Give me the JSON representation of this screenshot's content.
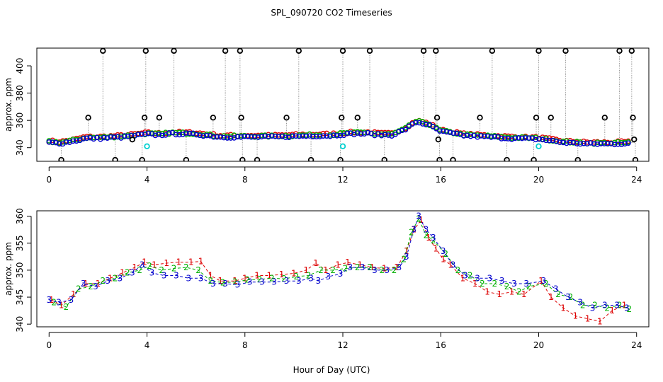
{
  "title": "SPL_090720  CO2 Timeseries",
  "xlabel": "Hour of Day (UTC)",
  "colors": {
    "series1": "#dd0000",
    "series2": "#00b000",
    "series3": "#0000cc",
    "outlier": "#000000",
    "flag": "#00d0d0",
    "stem": "#888888"
  },
  "chart_data": [
    {
      "type": "scatter",
      "name": "top-panel",
      "ylabel": "approx. ppm",
      "xlim": [
        -0.5,
        24.5
      ],
      "ylim": [
        330,
        413
      ],
      "xticks": [
        0,
        4,
        8,
        12,
        16,
        20,
        24
      ],
      "yticks": [
        340,
        360,
        380,
        400
      ],
      "profile": [
        [
          0.0,
          344
        ],
        [
          0.5,
          343.5
        ],
        [
          1.0,
          345
        ],
        [
          1.5,
          347
        ],
        [
          2.0,
          347
        ],
        [
          2.5,
          347.5
        ],
        [
          3.0,
          348
        ],
        [
          3.5,
          349
        ],
        [
          4.0,
          350
        ],
        [
          4.5,
          349.5
        ],
        [
          5.0,
          350.5
        ],
        [
          6.0,
          350
        ],
        [
          7.0,
          348
        ],
        [
          8.0,
          348
        ],
        [
          9.0,
          348
        ],
        [
          10.0,
          348.5
        ],
        [
          11.0,
          349
        ],
        [
          11.5,
          349
        ],
        [
          12.0,
          350
        ],
        [
          12.5,
          350.5
        ],
        [
          13.0,
          350.5
        ],
        [
          13.5,
          349.5
        ],
        [
          14.0,
          349.5
        ],
        [
          14.5,
          353
        ],
        [
          15.0,
          359
        ],
        [
          15.5,
          357
        ],
        [
          16.0,
          352
        ],
        [
          17.0,
          349
        ],
        [
          18.0,
          348
        ],
        [
          19.0,
          347
        ],
        [
          20.0,
          346.5
        ],
        [
          21.0,
          344
        ],
        [
          22.0,
          343
        ],
        [
          23.0,
          343
        ],
        [
          24.0,
          343.5
        ]
      ],
      "outliers": [
        {
          "x": 0.5,
          "y": 331
        },
        {
          "x": 1.6,
          "y": 362
        },
        {
          "x": 2.2,
          "y": 411
        },
        {
          "x": 2.7,
          "y": 331
        },
        {
          "x": 3.4,
          "y": 346
        },
        {
          "x": 3.8,
          "y": 331
        },
        {
          "x": 3.9,
          "y": 362
        },
        {
          "x": 3.95,
          "y": 411
        },
        {
          "x": 4.5,
          "y": 362
        },
        {
          "x": 5.1,
          "y": 411
        },
        {
          "x": 5.6,
          "y": 331
        },
        {
          "x": 6.7,
          "y": 362
        },
        {
          "x": 7.2,
          "y": 411
        },
        {
          "x": 7.8,
          "y": 411
        },
        {
          "x": 7.85,
          "y": 362
        },
        {
          "x": 7.9,
          "y": 331
        },
        {
          "x": 8.5,
          "y": 331
        },
        {
          "x": 9.7,
          "y": 362
        },
        {
          "x": 10.2,
          "y": 411
        },
        {
          "x": 10.7,
          "y": 331
        },
        {
          "x": 11.9,
          "y": 331
        },
        {
          "x": 11.95,
          "y": 362
        },
        {
          "x": 12.0,
          "y": 411
        },
        {
          "x": 12.6,
          "y": 362
        },
        {
          "x": 13.1,
          "y": 411
        },
        {
          "x": 13.7,
          "y": 331
        },
        {
          "x": 15.3,
          "y": 411
        },
        {
          "x": 15.8,
          "y": 411
        },
        {
          "x": 15.85,
          "y": 362
        },
        {
          "x": 15.9,
          "y": 346
        },
        {
          "x": 15.95,
          "y": 331
        },
        {
          "x": 16.5,
          "y": 331
        },
        {
          "x": 17.6,
          "y": 362
        },
        {
          "x": 18.1,
          "y": 411
        },
        {
          "x": 18.7,
          "y": 331
        },
        {
          "x": 19.8,
          "y": 331
        },
        {
          "x": 19.9,
          "y": 362
        },
        {
          "x": 20.0,
          "y": 411
        },
        {
          "x": 20.5,
          "y": 362
        },
        {
          "x": 21.1,
          "y": 411
        },
        {
          "x": 21.6,
          "y": 331
        },
        {
          "x": 22.7,
          "y": 362
        },
        {
          "x": 23.3,
          "y": 411
        },
        {
          "x": 23.8,
          "y": 411
        },
        {
          "x": 23.85,
          "y": 362
        },
        {
          "x": 23.9,
          "y": 346
        },
        {
          "x": 23.95,
          "y": 331
        }
      ],
      "flagged": [
        {
          "x": 4.0,
          "y": 341
        },
        {
          "x": 12.0,
          "y": 341
        },
        {
          "x": 20.0,
          "y": 341
        }
      ]
    },
    {
      "type": "scatter",
      "name": "bottom-panel",
      "ylabel": "approx. ppm",
      "xlim": [
        -0.5,
        24.5
      ],
      "ylim": [
        339.5,
        361
      ],
      "xticks": [
        0,
        4,
        8,
        12,
        16,
        20,
        24
      ],
      "yticks": [
        340,
        345,
        350,
        355,
        360
      ],
      "series": [
        {
          "name": "1",
          "marker": "1",
          "color": "#dd0000",
          "points": [
            [
              0.1,
              344.5
            ],
            [
              0.5,
              343.5
            ],
            [
              1.0,
              345.5
            ],
            [
              1.5,
              347.5
            ],
            [
              2.0,
              347.5
            ],
            [
              2.5,
              348.5
            ],
            [
              3.0,
              349.5
            ],
            [
              3.5,
              350.5
            ],
            [
              3.9,
              351.5
            ],
            [
              4.3,
              351
            ],
            [
              4.8,
              351.3
            ],
            [
              5.3,
              351.5
            ],
            [
              5.8,
              351.5
            ],
            [
              6.2,
              351.6
            ],
            [
              6.6,
              349
            ],
            [
              7.0,
              348
            ],
            [
              7.6,
              348
            ],
            [
              8.0,
              348.5
            ],
            [
              8.5,
              349
            ],
            [
              9.0,
              349
            ],
            [
              9.5,
              349.2
            ],
            [
              10.0,
              349.4
            ],
            [
              10.5,
              350
            ],
            [
              10.9,
              351.3
            ],
            [
              11.3,
              350
            ],
            [
              11.8,
              351
            ],
            [
              12.2,
              351.4
            ],
            [
              12.7,
              351
            ],
            [
              13.2,
              350.5
            ],
            [
              13.7,
              350.3
            ],
            [
              14.2,
              350.5
            ],
            [
              14.6,
              353.5
            ],
            [
              14.9,
              357.5
            ],
            [
              15.2,
              359.3
            ],
            [
              15.5,
              356
            ],
            [
              15.8,
              354
            ],
            [
              16.1,
              352
            ],
            [
              16.4,
              351
            ],
            [
              16.9,
              348.5
            ],
            [
              17.4,
              347.5
            ],
            [
              17.9,
              346
            ],
            [
              18.4,
              345.5
            ],
            [
              18.9,
              346
            ],
            [
              19.4,
              345.5
            ],
            [
              20.1,
              348
            ],
            [
              20.5,
              345
            ],
            [
              21.0,
              343
            ],
            [
              21.5,
              341.5
            ],
            [
              22.0,
              341
            ],
            [
              22.5,
              340.5
            ],
            [
              23.0,
              342.5
            ],
            [
              23.5,
              343.5
            ]
          ]
        },
        {
          "name": "2",
          "marker": "2",
          "color": "#00b000",
          "points": [
            [
              0.2,
              344
            ],
            [
              0.7,
              343.2
            ],
            [
              1.2,
              346.5
            ],
            [
              1.7,
              347
            ],
            [
              2.2,
              348
            ],
            [
              2.7,
              348.5
            ],
            [
              3.2,
              349.5
            ],
            [
              3.7,
              350
            ],
            [
              4.1,
              350.8
            ],
            [
              4.6,
              350
            ],
            [
              5.1,
              350.3
            ],
            [
              5.6,
              350.5
            ],
            [
              6.1,
              350
            ],
            [
              6.6,
              348
            ],
            [
              7.1,
              347.7
            ],
            [
              7.6,
              347.8
            ],
            [
              8.1,
              348.2
            ],
            [
              8.6,
              348.3
            ],
            [
              9.1,
              348.5
            ],
            [
              9.6,
              348.4
            ],
            [
              10.1,
              348.8
            ],
            [
              10.6,
              349
            ],
            [
              11.1,
              350
            ],
            [
              11.6,
              350
            ],
            [
              12.1,
              350.3
            ],
            [
              12.6,
              350.5
            ],
            [
              13.1,
              350.5
            ],
            [
              13.6,
              350
            ],
            [
              14.1,
              350
            ],
            [
              14.5,
              352
            ],
            [
              14.8,
              357
            ],
            [
              15.1,
              359.5
            ],
            [
              15.4,
              356.5
            ],
            [
              15.7,
              355.5
            ],
            [
              16.2,
              353
            ],
            [
              16.7,
              350
            ],
            [
              17.2,
              349
            ],
            [
              17.7,
              347.5
            ],
            [
              18.2,
              347.5
            ],
            [
              18.7,
              347
            ],
            [
              19.2,
              346
            ],
            [
              19.6,
              347
            ],
            [
              20.3,
              347.5
            ],
            [
              20.8,
              345.5
            ],
            [
              21.3,
              345
            ],
            [
              21.8,
              343.5
            ],
            [
              22.3,
              343.5
            ],
            [
              22.8,
              343
            ],
            [
              23.3,
              343.5
            ],
            [
              23.7,
              342.8
            ]
          ]
        },
        {
          "name": "3",
          "marker": "3",
          "color": "#0000cc",
          "points": [
            [
              0.0,
              344.5
            ],
            [
              0.4,
              344
            ],
            [
              0.9,
              344.5
            ],
            [
              1.4,
              347.5
            ],
            [
              1.9,
              347
            ],
            [
              2.4,
              348
            ],
            [
              2.9,
              348.5
            ],
            [
              3.4,
              349.5
            ],
            [
              3.8,
              351
            ],
            [
              4.2,
              349.5
            ],
            [
              4.7,
              349
            ],
            [
              5.2,
              349
            ],
            [
              5.7,
              348.5
            ],
            [
              6.2,
              348.5
            ],
            [
              6.7,
              347.5
            ],
            [
              7.2,
              347.5
            ],
            [
              7.7,
              347.3
            ],
            [
              8.2,
              347.8
            ],
            [
              8.7,
              347.8
            ],
            [
              9.2,
              347.8
            ],
            [
              9.7,
              348
            ],
            [
              10.2,
              348
            ],
            [
              10.7,
              348.5
            ],
            [
              11.0,
              348
            ],
            [
              11.4,
              348.8
            ],
            [
              11.9,
              349.3
            ],
            [
              12.3,
              350.5
            ],
            [
              12.8,
              350.5
            ],
            [
              13.3,
              350
            ],
            [
              13.8,
              350
            ],
            [
              14.3,
              350.5
            ],
            [
              14.6,
              352.5
            ],
            [
              14.9,
              357.5
            ],
            [
              15.1,
              360
            ],
            [
              15.4,
              357.5
            ],
            [
              15.7,
              356
            ],
            [
              16.1,
              353.5
            ],
            [
              16.5,
              351
            ],
            [
              17.0,
              349
            ],
            [
              17.5,
              348.5
            ],
            [
              18.0,
              348.5
            ],
            [
              18.5,
              348
            ],
            [
              19.0,
              347.5
            ],
            [
              19.5,
              347.5
            ],
            [
              20.2,
              348
            ],
            [
              20.7,
              346.5
            ],
            [
              21.2,
              345
            ],
            [
              21.7,
              344
            ],
            [
              22.2,
              343
            ],
            [
              22.7,
              343.5
            ],
            [
              23.2,
              343.5
            ],
            [
              23.6,
              343
            ]
          ]
        }
      ]
    }
  ]
}
